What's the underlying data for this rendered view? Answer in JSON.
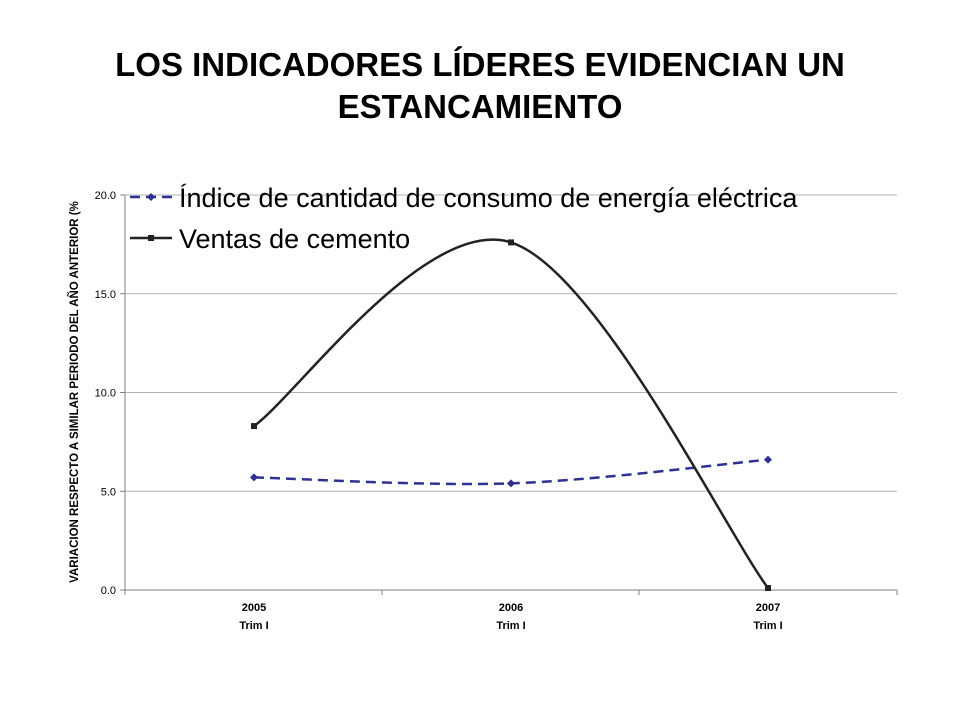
{
  "slide": {
    "title_line1": "LOS INDICADORES LÍDERES EVIDENCIAN UN",
    "title_line2": "ESTANCAMIENTO"
  },
  "chart_data": {
    "type": "line",
    "title": "",
    "ylabel": "VARIACION RESPECTO A SIMILAR PERIODO DEL AÑO ANTERIOR (%",
    "xlabel": "",
    "ylim": [
      0,
      20
    ],
    "yticks": [
      "0.0",
      "5.0",
      "10.0",
      "15.0",
      "20.0"
    ],
    "categories": [
      {
        "year": "2005",
        "period": "Trim I"
      },
      {
        "year": "2006",
        "period": "Trim I"
      },
      {
        "year": "2007",
        "period": "Trim I"
      }
    ],
    "series": [
      {
        "name": "Índice de cantidad de consumo de energía eléctrica",
        "values": [
          5.7,
          5.4,
          6.6
        ],
        "color": "#2E3192",
        "dash": true,
        "marker": "diamond"
      },
      {
        "name": "Ventas de cemento",
        "values": [
          8.3,
          17.6,
          0.1
        ],
        "color": "#222222",
        "dash": false,
        "marker": "square"
      }
    ],
    "grid": true,
    "legend": "top"
  }
}
